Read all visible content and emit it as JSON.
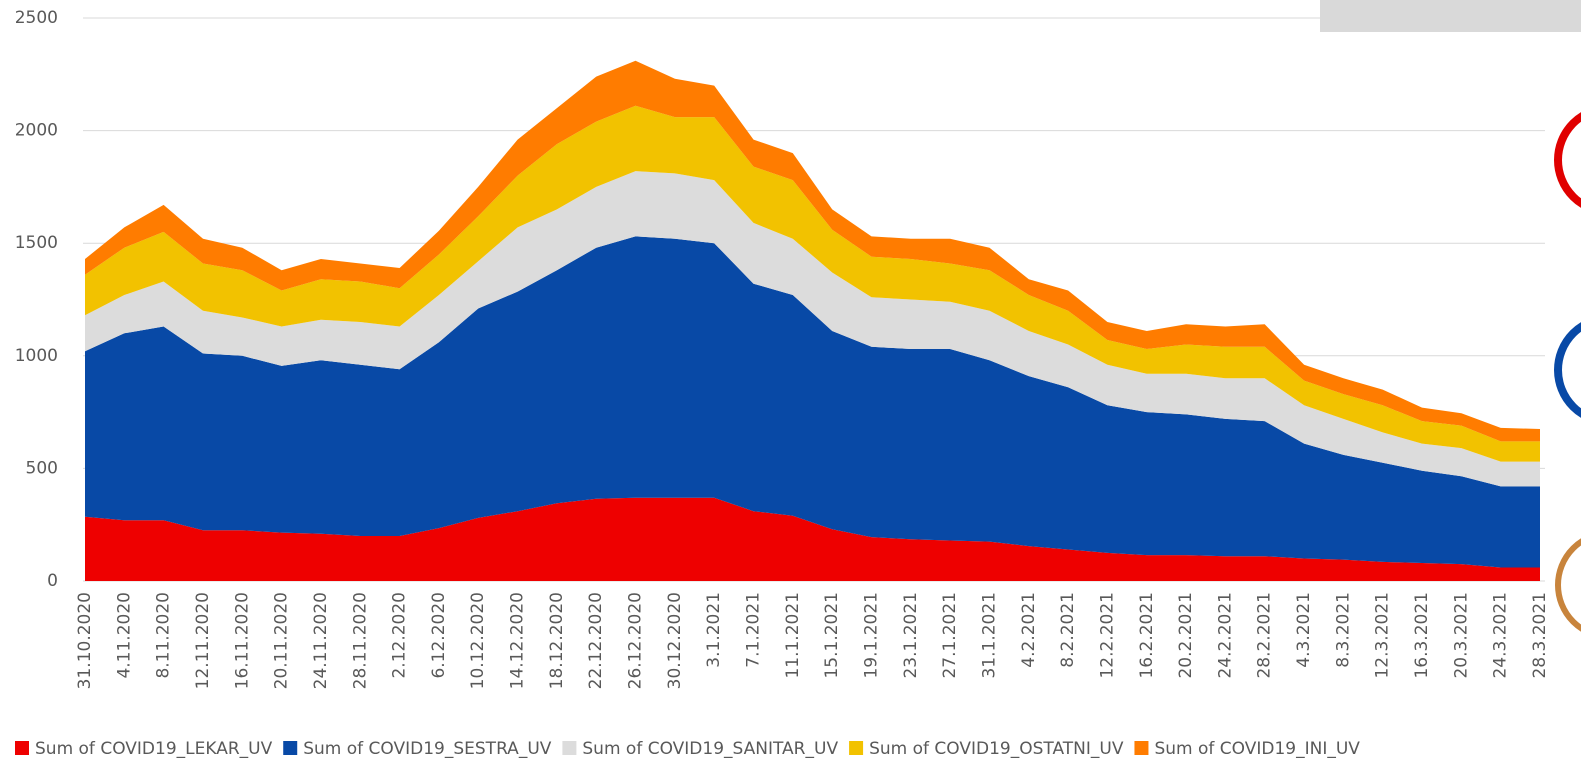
{
  "chart_data": {
    "type": "stacked_area",
    "categories": [
      "31.10.2020",
      "4.11.2020",
      "8.11.2020",
      "12.11.2020",
      "16.11.2020",
      "20.11.2020",
      "24.11.2020",
      "28.11.2020",
      "2.12.2020",
      "6.12.2020",
      "10.12.2020",
      "14.12.2020",
      "18.12.2020",
      "22.12.2020",
      "26.12.2020",
      "30.12.2020",
      "3.1.2021",
      "7.1.2021",
      "11.1.2021",
      "15.1.2021",
      "19.1.2021",
      "23.1.2021",
      "27.1.2021",
      "31.1.2021",
      "4.2.2021",
      "8.2.2021",
      "12.2.2021",
      "16.2.2021",
      "20.2.2021",
      "24.2.2021",
      "28.2.2021",
      "4.3.2021",
      "8.3.2021",
      "12.3.2021",
      "16.3.2021",
      "20.3.2021",
      "24.3.2021",
      "28.3.2021"
    ],
    "series": [
      {
        "name": "Sum of COVID19_LEKAR_UV",
        "color": "#ee0000",
        "values": [
          285,
          270,
          270,
          225,
          225,
          215,
          210,
          200,
          200,
          235,
          280,
          310,
          345,
          365,
          370,
          370,
          370,
          310,
          290,
          230,
          195,
          185,
          180,
          175,
          155,
          140,
          125,
          115,
          115,
          110,
          110,
          100,
          95,
          85,
          80,
          75,
          60,
          60
        ]
      },
      {
        "name": "Sum of COVID19_SESTRA_UV",
        "color": "#0849a6",
        "values": [
          735,
          830,
          860,
          785,
          775,
          740,
          770,
          760,
          740,
          825,
          930,
          975,
          1035,
          1115,
          1160,
          1150,
          1130,
          1010,
          980,
          880,
          845,
          845,
          850,
          805,
          755,
          720,
          655,
          635,
          625,
          610,
          600,
          510,
          465,
          440,
          410,
          390,
          360,
          360
        ]
      },
      {
        "name": "Sum of COVID19_SANITAR_UV",
        "color": "#dcdcdc",
        "values": [
          160,
          170,
          200,
          190,
          170,
          175,
          180,
          190,
          190,
          210,
          210,
          285,
          270,
          270,
          290,
          290,
          280,
          270,
          250,
          260,
          220,
          220,
          210,
          220,
          200,
          190,
          180,
          170,
          180,
          180,
          190,
          170,
          160,
          135,
          120,
          125,
          110,
          110
        ]
      },
      {
        "name": "Sum of COVID19_OSTATNI_UV",
        "color": "#f2c200",
        "values": [
          180,
          210,
          220,
          210,
          210,
          160,
          180,
          180,
          170,
          180,
          200,
          230,
          290,
          290,
          290,
          250,
          280,
          250,
          260,
          190,
          180,
          180,
          170,
          180,
          160,
          150,
          110,
          110,
          130,
          140,
          140,
          110,
          110,
          120,
          100,
          100,
          90,
          90
        ]
      },
      {
        "name": "Sum of COVID19_INI_UV",
        "color": "#ff7c00",
        "values": [
          70,
          90,
          120,
          110,
          100,
          90,
          90,
          80,
          90,
          105,
          130,
          160,
          160,
          200,
          200,
          170,
          140,
          120,
          120,
          90,
          90,
          90,
          110,
          100,
          70,
          90,
          80,
          80,
          90,
          90,
          100,
          70,
          70,
          70,
          60,
          55,
          60,
          55
        ]
      }
    ],
    "ylim": [
      0,
      2500
    ],
    "yticks": [
      0,
      500,
      1000,
      1500,
      2000,
      2500
    ],
    "grid": true,
    "legend": "bottom"
  }
}
